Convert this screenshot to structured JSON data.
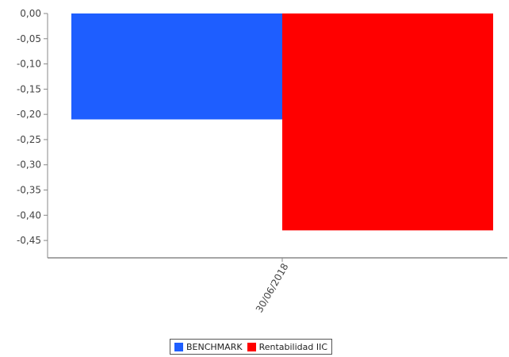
{
  "chart_data": {
    "type": "bar",
    "title": "",
    "xlabel": "",
    "ylabel": "",
    "categories": [
      "30/06/2018"
    ],
    "series": [
      {
        "name": "BENCHMARK",
        "values": [
          -0.21
        ],
        "color": "#1E5EFF"
      },
      {
        "name": "Rentabilidad IIC",
        "values": [
          -0.43
        ],
        "color": "#FF0000"
      }
    ],
    "ylim": [
      -0.475,
      0.0
    ],
    "yticks": [
      "0,00",
      "-0,05",
      "-0,10",
      "-0,15",
      "-0,20",
      "-0,25",
      "-0,30",
      "-0,35",
      "-0,40",
      "-0,45"
    ],
    "ytick_values": [
      0,
      -0.05,
      -0.1,
      -0.15,
      -0.2,
      -0.25,
      -0.3,
      -0.35,
      -0.4,
      -0.45
    ],
    "grid": false,
    "legend_position": "bottom-center"
  }
}
